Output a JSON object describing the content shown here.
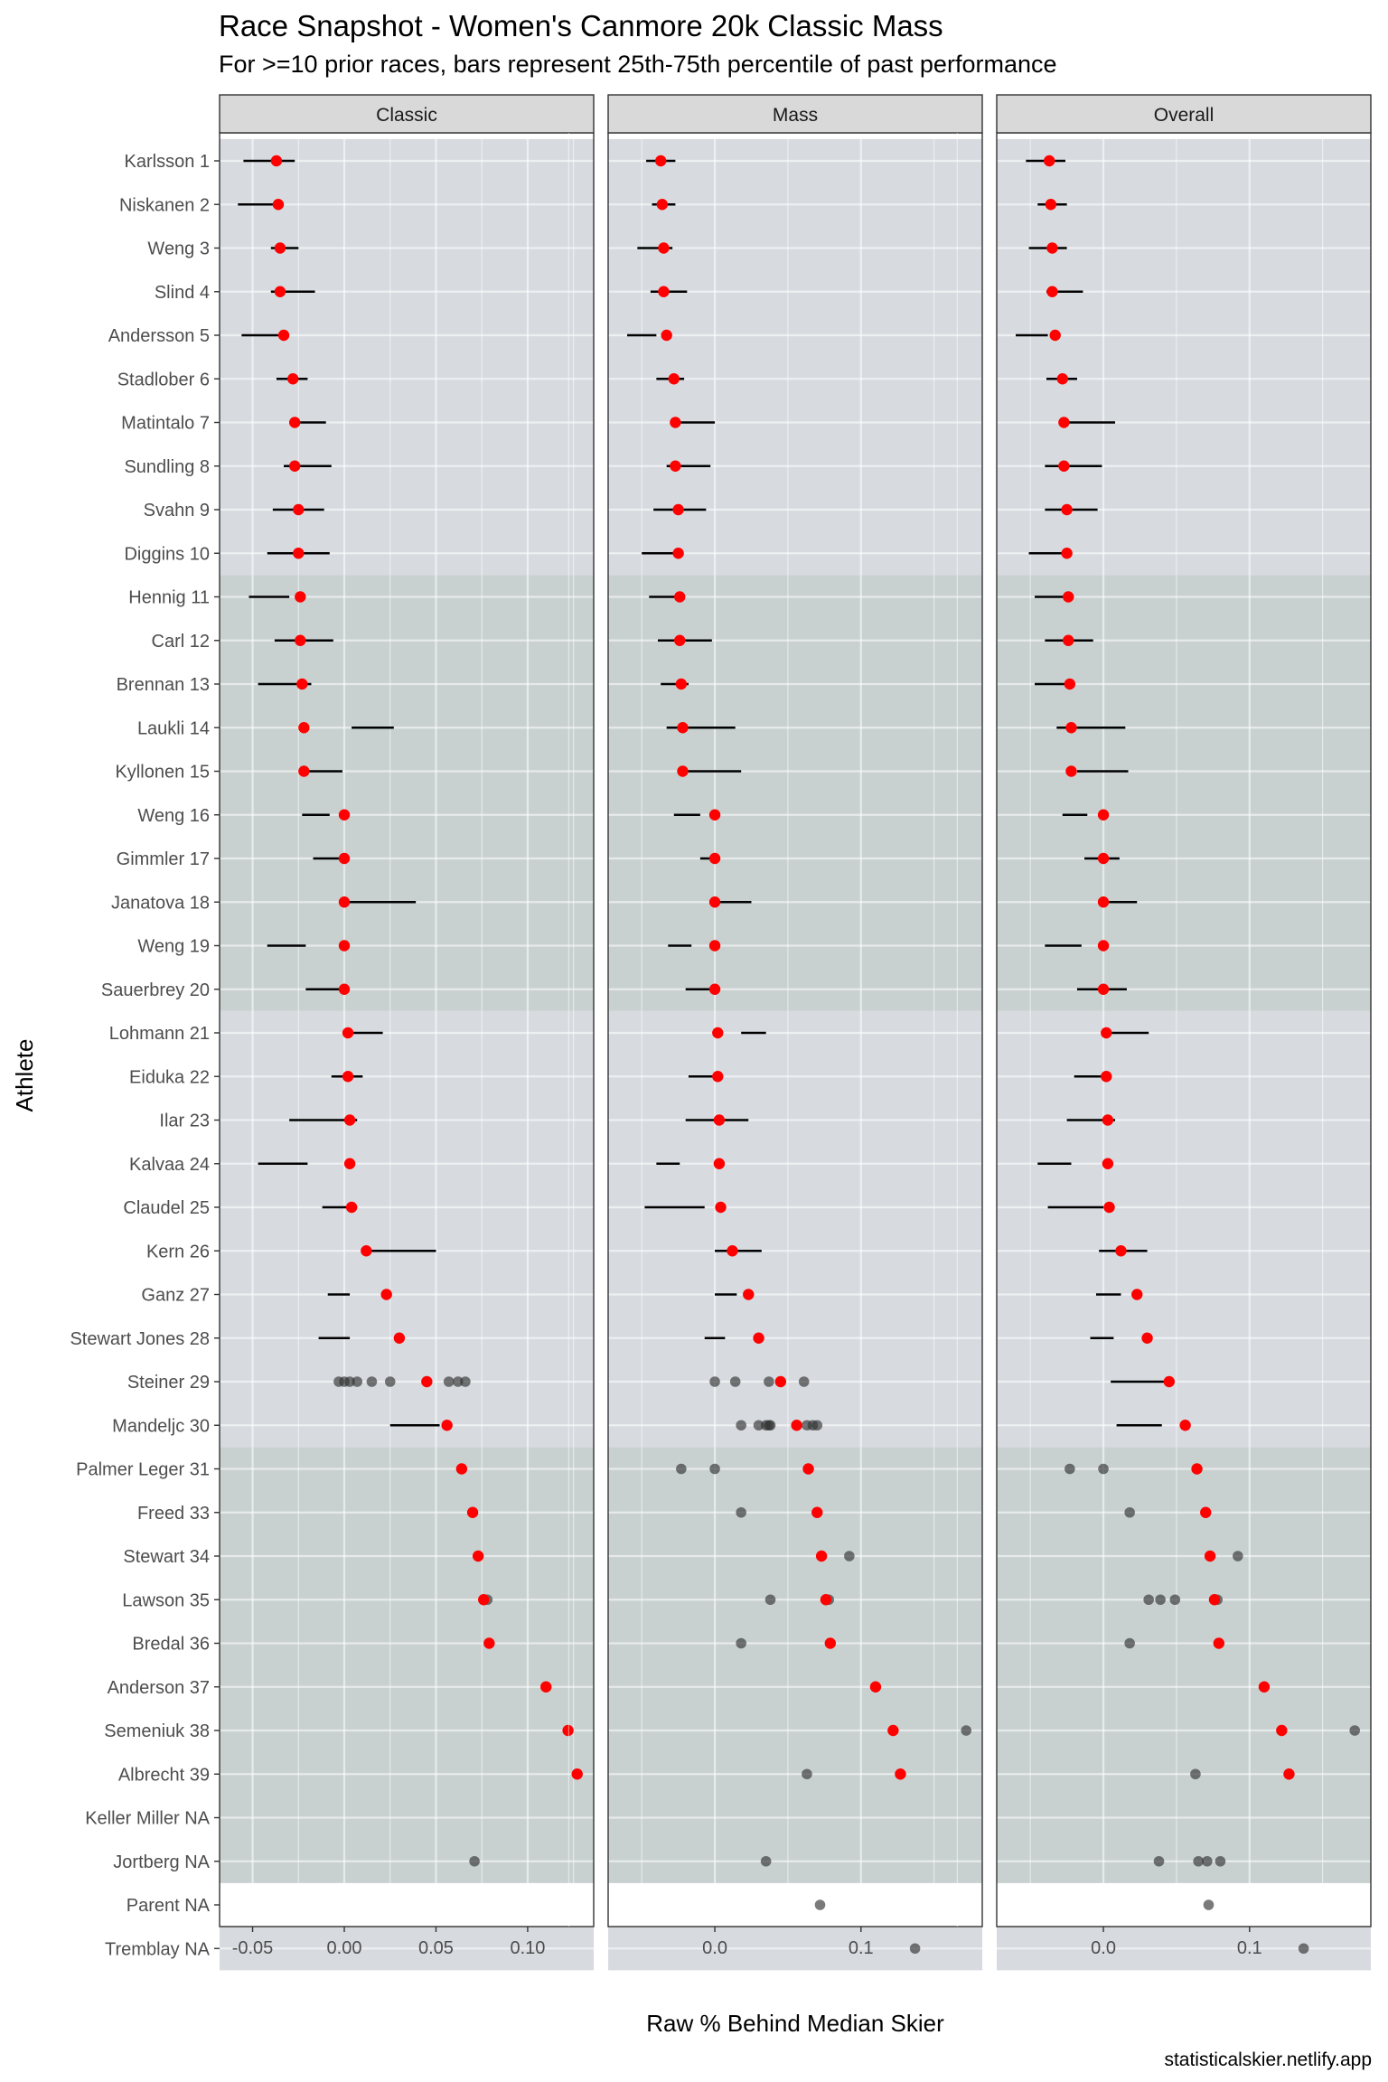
{
  "title": "Race Snapshot -  Women's Canmore 20k Classic Mass",
  "subtitle": "For >=10 prior races, bars represent 25th-75th percentile of past performance",
  "credit": "statisticalskier.netlify.app",
  "chart_data": {
    "type": "scatter",
    "xlabel": "Raw % Behind Median Skier",
    "ylabel": "Athlete",
    "colors": {
      "race_point": "#ff0000",
      "past_point": "#333333",
      "bar": "#000000",
      "band_light": "#d7dbe0",
      "band_dark": "#c9d1d0",
      "strip": "#d9d9d9"
    },
    "panels": [
      {
        "name": "Classic",
        "xlim": [
          -0.068,
          0.136
        ],
        "ticks": [
          -0.05,
          0.0,
          0.05,
          0.1
        ],
        "tick_labels": [
          "-0.05",
          "0.00",
          "0.05",
          "0.10"
        ]
      },
      {
        "name": "Mass",
        "xlim": [
          -0.073,
          0.183
        ],
        "ticks": [
          0.0,
          0.1
        ],
        "tick_labels": [
          "0.0",
          "0.1"
        ]
      },
      {
        "name": "Overall",
        "xlim": [
          -0.073,
          0.183
        ],
        "ticks": [
          0.0,
          0.1
        ],
        "tick_labels": [
          "0.0",
          "0.1"
        ]
      }
    ],
    "bands": [
      {
        "from": "Karlsson 1",
        "to": "Diggins 10",
        "shade": "light"
      },
      {
        "from": "Hennig 11",
        "to": "Sauerbrey 20",
        "shade": "dark"
      },
      {
        "from": "Lohmann 21",
        "to": "Mandeljc 30",
        "shade": "light"
      },
      {
        "from": "Palmer Leger 31",
        "to": "Jortberg NA",
        "shade": "dark"
      },
      {
        "from": "Tremblay NA",
        "to": "Tremblay NA",
        "shade": "light"
      }
    ],
    "athletes": [
      {
        "name": "Karlsson 1",
        "race": [
          -0.037,
          -0.037,
          -0.037
        ],
        "bars": [
          [
            -0.055,
            -0.027
          ],
          [
            -0.047,
            -0.027
          ],
          [
            -0.053,
            -0.026
          ]
        ],
        "past": [
          [],
          [],
          []
        ]
      },
      {
        "name": "Niskanen 2",
        "race": [
          -0.036,
          -0.036,
          -0.036
        ],
        "bars": [
          [
            -0.058,
            -0.033
          ],
          [
            -0.043,
            -0.027
          ],
          [
            -0.045,
            -0.025
          ]
        ],
        "past": [
          [],
          [],
          []
        ]
      },
      {
        "name": "Weng 3",
        "race": [
          -0.035,
          -0.035,
          -0.035
        ],
        "bars": [
          [
            -0.04,
            -0.025
          ],
          [
            -0.053,
            -0.029
          ],
          [
            -0.051,
            -0.025
          ]
        ],
        "past": [
          [],
          [],
          []
        ]
      },
      {
        "name": "Slind 4",
        "race": [
          -0.035,
          -0.035,
          -0.035
        ],
        "bars": [
          [
            -0.04,
            -0.016
          ],
          [
            -0.044,
            -0.019
          ],
          [
            -0.039,
            -0.014
          ]
        ],
        "past": [
          [],
          [],
          []
        ]
      },
      {
        "name": "Andersson 5",
        "race": [
          -0.033,
          -0.033,
          -0.033
        ],
        "bars": [
          [
            -0.056,
            -0.036
          ],
          [
            -0.06,
            -0.04
          ],
          [
            -0.06,
            -0.038
          ]
        ],
        "past": [
          [],
          [],
          []
        ]
      },
      {
        "name": "Stadlober 6",
        "race": [
          -0.028,
          -0.028,
          -0.028
        ],
        "bars": [
          [
            -0.037,
            -0.02
          ],
          [
            -0.04,
            -0.021
          ],
          [
            -0.039,
            -0.018
          ]
        ],
        "past": [
          [],
          [],
          []
        ]
      },
      {
        "name": "Matintalo 7",
        "race": [
          -0.027,
          -0.027,
          -0.027
        ],
        "bars": [
          [
            -0.03,
            -0.01
          ],
          [
            -0.025,
            0.0
          ],
          [
            -0.025,
            0.008
          ]
        ],
        "past": [
          [],
          [],
          []
        ]
      },
      {
        "name": "Sundling 8",
        "race": [
          -0.027,
          -0.027,
          -0.027
        ],
        "bars": [
          [
            -0.033,
            -0.007
          ],
          [
            -0.033,
            -0.003
          ],
          [
            -0.04,
            -0.001
          ]
        ],
        "past": [
          [],
          [],
          []
        ]
      },
      {
        "name": "Svahn 9",
        "race": [
          -0.025,
          -0.025,
          -0.025
        ],
        "bars": [
          [
            -0.039,
            -0.011
          ],
          [
            -0.042,
            -0.006
          ],
          [
            -0.04,
            -0.004
          ]
        ],
        "past": [
          [],
          [],
          []
        ]
      },
      {
        "name": "Diggins 10",
        "race": [
          -0.025,
          -0.025,
          -0.025
        ],
        "bars": [
          [
            -0.042,
            -0.008
          ],
          [
            -0.05,
            -0.025
          ],
          [
            -0.051,
            -0.025
          ]
        ],
        "past": [
          [],
          [],
          []
        ]
      },
      {
        "name": "Hennig 11",
        "race": [
          -0.024,
          -0.024,
          -0.024
        ],
        "bars": [
          [
            -0.052,
            -0.03
          ],
          [
            -0.045,
            -0.024
          ],
          [
            -0.047,
            -0.024
          ]
        ],
        "past": [
          [],
          [],
          []
        ]
      },
      {
        "name": "Carl 12",
        "race": [
          -0.024,
          -0.024,
          -0.024
        ],
        "bars": [
          [
            -0.038,
            -0.006
          ],
          [
            -0.039,
            -0.002
          ],
          [
            -0.04,
            -0.007
          ]
        ],
        "past": [
          [],
          [],
          []
        ]
      },
      {
        "name": "Brennan 13",
        "race": [
          -0.023,
          -0.023,
          -0.023
        ],
        "bars": [
          [
            -0.047,
            -0.018
          ],
          [
            -0.037,
            -0.018
          ],
          [
            -0.047,
            -0.024
          ]
        ],
        "past": [
          [],
          [],
          []
        ]
      },
      {
        "name": "Laukli 14",
        "race": [
          -0.022,
          -0.022,
          -0.022
        ],
        "bars": [
          [
            0.004,
            0.027
          ],
          [
            -0.033,
            0.014
          ],
          [
            -0.032,
            0.015
          ]
        ],
        "past": [
          [],
          [],
          []
        ]
      },
      {
        "name": "Kyllonen 15",
        "race": [
          -0.022,
          -0.022,
          -0.022
        ],
        "bars": [
          [
            -0.02,
            -0.001
          ],
          [
            -0.02,
            0.018
          ],
          [
            -0.018,
            0.017
          ]
        ],
        "past": [
          [],
          [],
          []
        ]
      },
      {
        "name": "Weng 16",
        "race": [
          0.0,
          0.0,
          0.0
        ],
        "bars": [
          [
            -0.023,
            -0.008
          ],
          [
            -0.028,
            -0.01
          ],
          [
            -0.028,
            -0.011
          ]
        ],
        "past": [
          [],
          [],
          []
        ]
      },
      {
        "name": "Gimmler 17",
        "race": [
          0.0,
          0.0,
          0.0
        ],
        "bars": [
          [
            -0.017,
            0.0
          ],
          [
            -0.01,
            0.0
          ],
          [
            -0.013,
            0.011
          ]
        ],
        "past": [
          [],
          [],
          []
        ]
      },
      {
        "name": "Janatova 18",
        "race": [
          0.0,
          0.0,
          0.0
        ],
        "bars": [
          [
            0.0,
            0.039
          ],
          [
            0.0,
            0.025
          ],
          [
            0.0,
            0.023
          ]
        ],
        "past": [
          [],
          [],
          []
        ]
      },
      {
        "name": "Weng 19",
        "race": [
          0.0,
          0.0,
          0.0
        ],
        "bars": [
          [
            -0.042,
            -0.021
          ],
          [
            -0.032,
            -0.016
          ],
          [
            -0.04,
            -0.015
          ]
        ],
        "past": [
          [],
          [],
          []
        ]
      },
      {
        "name": "Sauerbrey 20",
        "race": [
          0.0,
          0.0,
          0.0
        ],
        "bars": [
          [
            -0.021,
            0.0
          ],
          [
            -0.02,
            0.0
          ],
          [
            -0.018,
            0.016
          ]
        ],
        "past": [
          [],
          [],
          []
        ]
      },
      {
        "name": "Lohmann 21",
        "race": [
          0.002,
          0.002,
          0.002
        ],
        "bars": [
          [
            0.002,
            0.021
          ],
          [
            0.018,
            0.035
          ],
          [
            0.002,
            0.031
          ]
        ],
        "past": [
          [],
          [],
          []
        ]
      },
      {
        "name": "Eiduka 22",
        "race": [
          0.002,
          0.002,
          0.002
        ],
        "bars": [
          [
            -0.007,
            0.01
          ],
          [
            -0.018,
            0.0
          ],
          [
            -0.02,
            0.0
          ]
        ],
        "past": [
          [],
          [],
          []
        ]
      },
      {
        "name": "Ilar 23",
        "race": [
          0.003,
          0.003,
          0.003
        ],
        "bars": [
          [
            -0.03,
            0.007
          ],
          [
            -0.02,
            0.023
          ],
          [
            -0.025,
            0.008
          ]
        ],
        "past": [
          [],
          [],
          []
        ]
      },
      {
        "name": "Kalvaa 24",
        "race": [
          0.003,
          0.003,
          0.003
        ],
        "bars": [
          [
            -0.047,
            -0.02
          ],
          [
            -0.04,
            -0.024
          ],
          [
            -0.045,
            -0.022
          ]
        ],
        "past": [
          [],
          [],
          []
        ]
      },
      {
        "name": "Claudel 25",
        "race": [
          0.004,
          0.004,
          0.004
        ],
        "bars": [
          [
            -0.012,
            0.007
          ],
          [
            -0.048,
            -0.007
          ],
          [
            -0.038,
            0.0
          ]
        ],
        "past": [
          [],
          [],
          []
        ]
      },
      {
        "name": "Kern 26",
        "race": [
          0.012,
          0.012,
          0.012
        ],
        "bars": [
          [
            0.012,
            0.05
          ],
          [
            0.0,
            0.032
          ],
          [
            -0.003,
            0.03
          ]
        ],
        "past": [
          [],
          [],
          []
        ]
      },
      {
        "name": "Ganz 27",
        "race": [
          0.023,
          0.023,
          0.023
        ],
        "bars": [
          [
            -0.009,
            0.003
          ],
          [
            0.0,
            0.015
          ],
          [
            -0.005,
            0.012
          ]
        ],
        "past": [
          [],
          [],
          []
        ]
      },
      {
        "name": "Stewart Jones 28",
        "race": [
          0.03,
          0.03,
          0.03
        ],
        "bars": [
          [
            -0.014,
            0.003
          ],
          [
            -0.007,
            0.007
          ],
          [
            -0.009,
            0.007
          ]
        ],
        "past": [
          [],
          [],
          []
        ]
      },
      {
        "name": "Steiner 29",
        "race": [
          0.045,
          0.045,
          0.045
        ],
        "bars": [
          null,
          null,
          [
            0.005,
            0.045
          ]
        ],
        "past": [
          [
            -0.003,
            0.0,
            0.003,
            0.007,
            0.015,
            0.025,
            0.057,
            0.062,
            0.066
          ],
          [
            0.0,
            0.014,
            0.037,
            0.061
          ],
          []
        ]
      },
      {
        "name": "Mandeljc 30",
        "race": [
          0.056,
          0.056,
          0.056
        ],
        "bars": [
          [
            0.025,
            0.052
          ],
          null,
          [
            0.009,
            0.04
          ]
        ],
        "past": [
          [],
          [
            0.018,
            0.03,
            0.035,
            0.037,
            0.038,
            0.063,
            0.067,
            0.07
          ],
          []
        ]
      },
      {
        "name": "Palmer Leger 31",
        "race": [
          0.064,
          0.064,
          0.064
        ],
        "bars": [
          null,
          null,
          null
        ],
        "past": [
          [],
          [
            -0.023,
            0.0
          ],
          [
            -0.023,
            0.0
          ]
        ]
      },
      {
        "name": "Freed 33",
        "race": [
          0.07,
          0.07,
          0.07
        ],
        "bars": [
          null,
          null,
          null
        ],
        "past": [
          [],
          [
            0.018
          ],
          [
            0.018
          ]
        ]
      },
      {
        "name": "Stewart 34",
        "race": [
          0.073,
          0.073,
          0.073
        ],
        "bars": [
          null,
          null,
          null
        ],
        "past": [
          [],
          [
            0.092
          ],
          [
            0.092
          ]
        ]
      },
      {
        "name": "Lawson 35",
        "race": [
          0.076,
          0.076,
          0.076
        ],
        "bars": [
          null,
          null,
          null
        ],
        "past": [
          [
            0.078
          ],
          [
            0.038,
            0.078
          ],
          [
            0.031,
            0.039,
            0.049,
            0.078
          ]
        ]
      },
      {
        "name": "Bredal 36",
        "race": [
          0.079,
          0.079,
          0.079
        ],
        "bars": [
          null,
          null,
          null
        ],
        "past": [
          [],
          [
            0.018
          ],
          [
            0.018
          ]
        ]
      },
      {
        "name": "Anderson 37",
        "race": [
          0.11,
          0.11,
          0.11
        ],
        "bars": [
          null,
          null,
          null
        ],
        "past": [
          [],
          [],
          []
        ]
      },
      {
        "name": "Semeniuk 38",
        "race": [
          0.122,
          0.122,
          0.122
        ],
        "bars": [
          null,
          null,
          null
        ],
        "past": [
          [],
          [
            0.172
          ],
          [
            0.172
          ]
        ]
      },
      {
        "name": "Albrecht 39",
        "race": [
          0.127,
          0.127,
          0.127
        ],
        "bars": [
          null,
          null,
          null
        ],
        "past": [
          [],
          [
            0.063
          ],
          [
            0.063
          ]
        ]
      },
      {
        "name": "Keller Miller NA",
        "race": [
          null,
          null,
          null
        ],
        "bars": [
          null,
          null,
          null
        ],
        "past": [
          [],
          [],
          []
        ]
      },
      {
        "name": "Jortberg NA",
        "race": [
          null,
          null,
          null
        ],
        "bars": [
          null,
          null,
          null
        ],
        "past": [
          [
            0.071
          ],
          [
            0.035
          ],
          [
            0.038,
            0.065,
            0.071,
            0.08
          ]
        ]
      },
      {
        "name": "Parent NA",
        "race": [
          null,
          null,
          null
        ],
        "bars": [
          null,
          null,
          null
        ],
        "past": [
          [],
          [
            0.072
          ],
          [
            0.072
          ]
        ]
      },
      {
        "name": "Tremblay NA",
        "race": [
          null,
          null,
          null
        ],
        "bars": [
          null,
          null,
          null
        ],
        "past": [
          [],
          [
            0.137
          ],
          [
            0.137
          ]
        ]
      }
    ]
  }
}
